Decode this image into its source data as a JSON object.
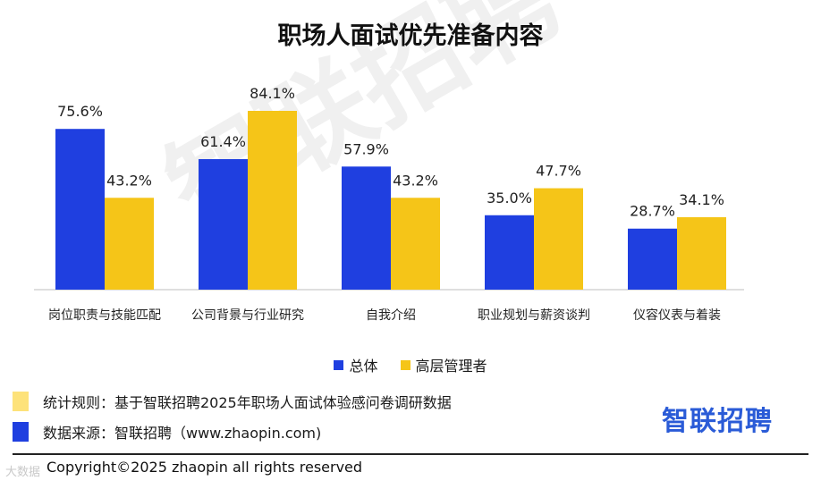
{
  "title": "职场人面试优先准备内容",
  "watermark": "智联招聘",
  "legend": [
    {
      "label": "总体",
      "color": "#1f3fe0"
    },
    {
      "label": "高层管理者",
      "color": "#f5c518"
    }
  ],
  "notes": [
    {
      "text": "统计规则：基于智联招聘2025年职场人面试体验感问卷调研数据",
      "color": "#fde27a"
    },
    {
      "text": "数据来源：智联招聘（www.zhaopin.com)",
      "color": "#1f3fe0"
    }
  ],
  "brand": "智联招聘",
  "copyright": "Copyright©2025 zhaopin all rights reserved",
  "corner_logo": "大数据",
  "chart_data": {
    "type": "bar",
    "categories": [
      "岗位职责与技能匹配",
      "公司背景与行业研究",
      "自我介绍",
      "职业规划与薪资谈判",
      "仪容仪表与着装"
    ],
    "series": [
      {
        "name": "总体",
        "values": [
          75.6,
          61.4,
          57.9,
          35.0,
          28.7
        ],
        "labels": [
          "75.6%",
          "61.4%",
          "57.9%",
          "35.0%",
          "28.7%"
        ],
        "color": "#1f3fe0"
      },
      {
        "name": "高层管理者",
        "values": [
          43.2,
          84.1,
          43.2,
          47.7,
          34.1
        ],
        "labels": [
          "43.2%",
          "84.1%",
          "43.2%",
          "47.7%",
          "34.1%"
        ],
        "color": "#f5c518"
      }
    ],
    "ylim": [
      0,
      90
    ],
    "grid": false
  }
}
